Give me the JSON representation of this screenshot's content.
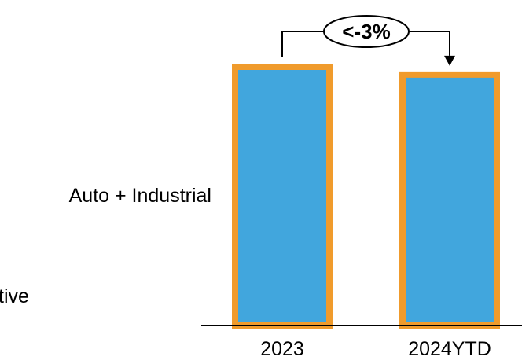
{
  "chart_data": {
    "type": "bar",
    "categories": [
      "2023",
      "2024YTD"
    ],
    "values": [
      100,
      97
    ],
    "ylim": [
      0,
      100
    ],
    "series_label": "Auto + Industrial",
    "left_label_fragment": "tive",
    "annotation": {
      "text": "<-3%",
      "from": "2023",
      "to": "2024YTD"
    },
    "colors": {
      "bar_fill": "#41A6DD",
      "bar_border": "#F09B2C",
      "axis": "#000000",
      "text": "#000000"
    }
  }
}
